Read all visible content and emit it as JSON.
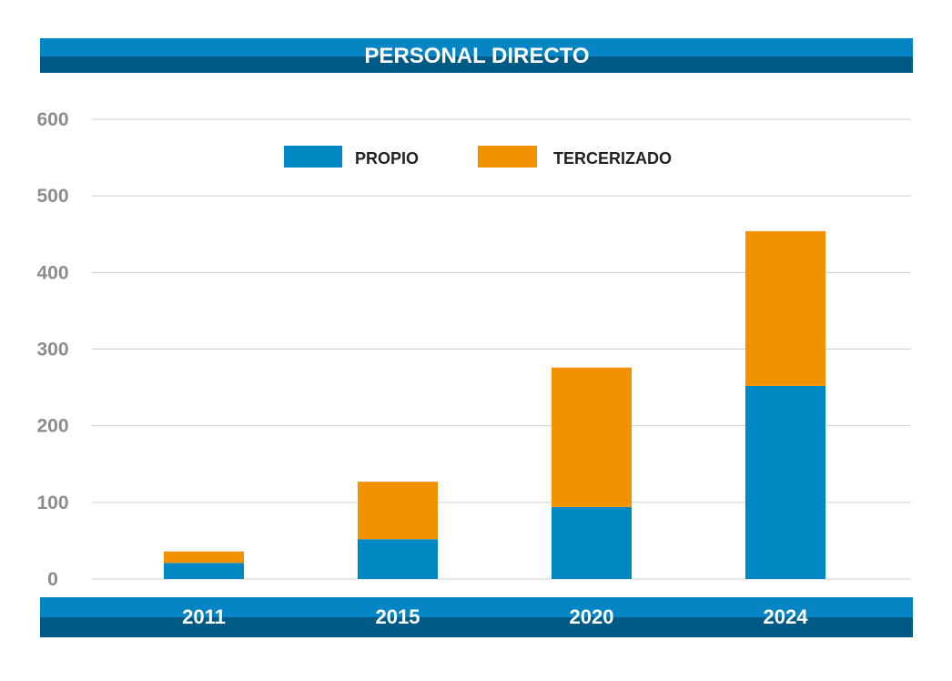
{
  "chart_data": {
    "type": "bar",
    "stacked": true,
    "title": "PERSONAL DIRECTO",
    "categories": [
      "2011",
      "2015",
      "2020",
      "2024"
    ],
    "series": [
      {
        "name": "PROPIO",
        "values": [
          21,
          52,
          94,
          252
        ]
      },
      {
        "name": "TERCERIZADO",
        "values": [
          15,
          75,
          182,
          202
        ]
      }
    ],
    "ylim": [
      0,
      600
    ],
    "yticks": [
      "0",
      "100",
      "200",
      "300",
      "400",
      "500",
      "600"
    ],
    "grid": true,
    "legend": "top-center"
  },
  "colors": {
    "propio": "#0088c5",
    "tercerizado": "#f39200",
    "band_light": "#0585c4",
    "band_dark": "#005a86",
    "grid": "#cfcfcf",
    "tick": "#8c8c8c"
  }
}
